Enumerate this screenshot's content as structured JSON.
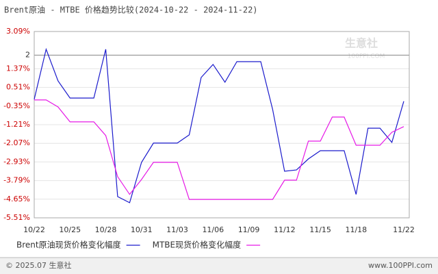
{
  "chart_data": {
    "type": "line",
    "title": "Brent原油 - MTBE 价格趋势比较(2024-10-22 - 2024-11-22)",
    "categories": [
      "10/22",
      null,
      null,
      "10/25",
      null,
      null,
      "10/28",
      null,
      null,
      "10/31",
      null,
      null,
      "11/03",
      null,
      null,
      "11/06",
      null,
      null,
      "11/09",
      null,
      null,
      "11/12",
      null,
      null,
      "11/15",
      null,
      null,
      "11/18",
      null,
      null,
      null,
      "11/22"
    ],
    "series": [
      {
        "name": "Brent原油现货价格变化幅度",
        "color": "#1a1acc",
        "values": [
          -0.04,
          2.27,
          0.81,
          0.02,
          0.02,
          0.02,
          2.27,
          -4.53,
          -4.81,
          -2.95,
          -2.06,
          -2.06,
          -2.06,
          -1.68,
          0.97,
          1.57,
          0.75,
          1.7,
          1.7,
          1.7,
          -0.51,
          -3.36,
          -3.3,
          -2.79,
          -2.41,
          -2.41,
          -2.41,
          -4.43,
          -1.37,
          -1.37,
          -2.03,
          -0.13
        ]
      },
      {
        "name": "MTBE现货价格变化幅度",
        "color": "#e619e6",
        "values": [
          -0.07,
          -0.07,
          -0.39,
          -1.08,
          -1.08,
          -1.08,
          -1.71,
          -3.61,
          -4.43,
          -3.74,
          -2.95,
          -2.95,
          -2.95,
          -4.66,
          -4.66,
          -4.66,
          -4.66,
          -4.66,
          -4.66,
          -4.66,
          -4.66,
          -3.77,
          -3.77,
          -1.97,
          -1.97,
          -0.86,
          -0.86,
          -2.16,
          -2.16,
          -2.16,
          -1.56,
          -1.3
        ]
      }
    ],
    "ylim": [
      -5.51,
      3.09
    ],
    "yticks": [
      {
        "value": 3.09,
        "label": "3.09%"
      },
      2,
      {
        "value": 1.37,
        "label": "1.37%"
      },
      {
        "value": 0.51,
        "label": "0.51%"
      },
      {
        "value": -0.35,
        "label": "-0.35%"
      },
      {
        "value": -1.21,
        "label": "-1.21%"
      },
      {
        "value": -2.07,
        "label": "-2.07%"
      },
      {
        "value": -2.93,
        "label": "-2.93%"
      },
      {
        "value": -3.79,
        "label": "-3.79%"
      },
      {
        "value": -4.65,
        "label": "-4.65%"
      },
      {
        "value": -5.51,
        "label": "-5.51%"
      }
    ],
    "grid": true,
    "watermark": {
      "name": "生意社",
      "site": "100PPI.COM"
    },
    "footer": {
      "copyright": "© 2025.07 生意社",
      "site": "www.100PPI.com"
    }
  }
}
